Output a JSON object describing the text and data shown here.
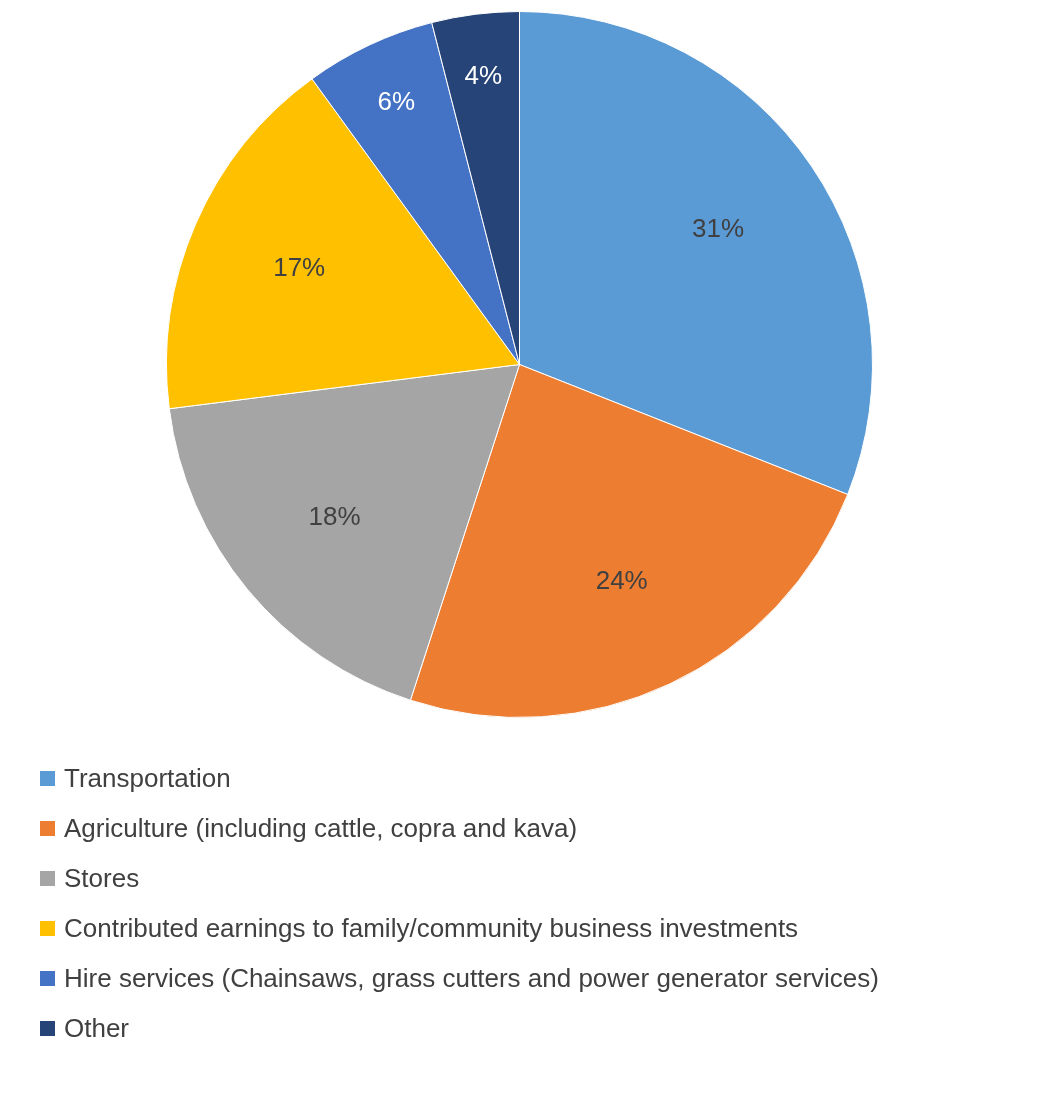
{
  "chart_data": {
    "type": "pie",
    "categories": [
      "Transportation",
      "Agriculture (including cattle, copra and kava)",
      "Stores",
      "Contributed earnings to family/community business investments",
      "Hire services (Chainsaws, grass cutters and power generator services)",
      "Other"
    ],
    "values": [
      31,
      24,
      18,
      17,
      6,
      4
    ],
    "colors": [
      "#5b9bd5",
      "#ed7d31",
      "#a5a5a5",
      "#ffc000",
      "#4472c4",
      "#264478"
    ],
    "value_labels": [
      "31%",
      "24%",
      "18%",
      "17%",
      "6%",
      "4%"
    ],
    "legend": "bottom"
  }
}
